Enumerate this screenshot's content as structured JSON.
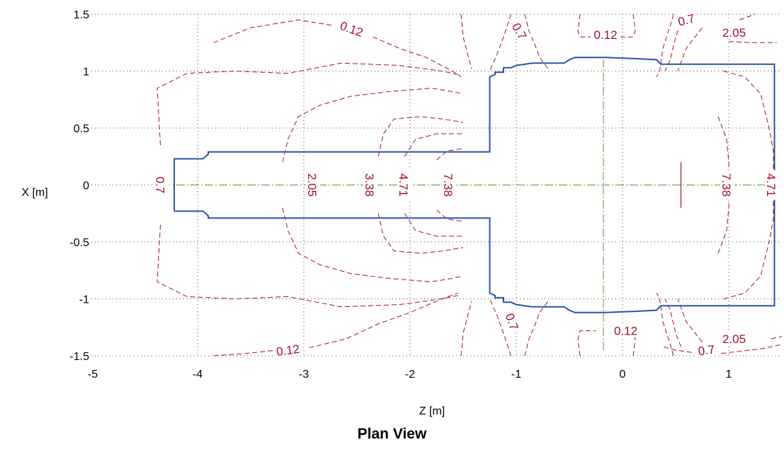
{
  "chart_data": {
    "type": "contour",
    "title": "Plan View",
    "xlabel": "Z [m]",
    "ylabel": "X [m]",
    "xlim": [
      -5,
      1.5
    ],
    "ylim": [
      -1.5,
      1.5
    ],
    "x_ticks": [
      "-5",
      "-4",
      "-3",
      "-2",
      "-1",
      "0",
      "1"
    ],
    "y_ticks": [
      "1.5",
      "1",
      "0.5",
      "0",
      "-0.5",
      "-1",
      "-1.5"
    ],
    "grid": true,
    "colors": {
      "contour": "#a1102a",
      "outline": "#2a55a5",
      "centerline": "#6aa84f",
      "grid": "#444444"
    },
    "contour_levels": [
      "0.12",
      "0.7",
      "2.05",
      "3.38",
      "4.71",
      "7.38"
    ],
    "contour_labels": [
      {
        "text": "0.12",
        "z": -2.55,
        "x": 1.37,
        "angle": 20
      },
      {
        "text": "0.7",
        "z": -0.97,
        "x": 1.35,
        "angle": 60
      },
      {
        "text": "0.12",
        "z": -0.16,
        "x": 1.32,
        "angle": 0
      },
      {
        "text": "0.7",
        "z": 0.6,
        "x": 1.45,
        "angle": -15
      },
      {
        "text": "2.05",
        "z": 1.05,
        "x": 1.34,
        "angle": 0
      },
      {
        "text": "0.7",
        "z": -4.35,
        "x": 0.0,
        "angle": 90
      },
      {
        "text": "2.05",
        "z": -2.92,
        "x": 0.0,
        "angle": 90
      },
      {
        "text": "3.38",
        "z": -2.38,
        "x": 0.0,
        "angle": 90
      },
      {
        "text": "4.71",
        "z": -2.06,
        "x": 0.0,
        "angle": 90
      },
      {
        "text": "7.38",
        "z": -1.64,
        "x": 0.0,
        "angle": 90
      },
      {
        "text": "7.38",
        "z": 0.98,
        "x": 0.0,
        "angle": 90
      },
      {
        "text": "4.71",
        "z": 1.4,
        "x": 0.0,
        "angle": 90
      },
      {
        "text": "0.7",
        "z": -1.04,
        "x": -1.2,
        "angle": 70
      },
      {
        "text": "0.12",
        "z": 0.03,
        "x": -1.28,
        "angle": 0
      },
      {
        "text": "2.05",
        "z": 1.05,
        "x": -1.35,
        "angle": 0
      },
      {
        "text": "0.7",
        "z": 0.79,
        "x": -1.45,
        "angle": -8
      },
      {
        "text": "0.12",
        "z": -3.15,
        "x": -1.45,
        "angle": -8
      }
    ],
    "contours": [
      [
        [
          -4.35,
          0.35
        ],
        [
          -4.38,
          0.85
        ],
        [
          -4.1,
          0.98
        ],
        [
          -3.65,
          1.0
        ],
        [
          -3.15,
          0.98
        ],
        [
          -2.65,
          1.07
        ],
        [
          -2.1,
          1.05
        ],
        [
          -1.7,
          1.0
        ],
        [
          -1.55,
          0.97
        ]
      ],
      [
        [
          -4.35,
          -0.35
        ],
        [
          -4.38,
          -0.85
        ],
        [
          -4.1,
          -0.98
        ],
        [
          -3.65,
          -1.0
        ],
        [
          -3.15,
          -0.98
        ],
        [
          -2.65,
          -1.07
        ],
        [
          -2.1,
          -1.05
        ],
        [
          -1.7,
          -1.0
        ],
        [
          -1.55,
          -0.97
        ]
      ],
      [
        [
          -3.2,
          -0.2
        ],
        [
          -3.15,
          -0.4
        ],
        [
          -3.05,
          -0.6
        ],
        [
          -2.85,
          -0.7
        ],
        [
          -2.55,
          -0.78
        ],
        [
          -2.2,
          -0.82
        ],
        [
          -1.8,
          -0.85
        ],
        [
          -1.6,
          -0.82
        ],
        [
          -1.5,
          -0.8
        ]
      ],
      [
        [
          -3.2,
          0.2
        ],
        [
          -3.15,
          0.4
        ],
        [
          -3.05,
          0.6
        ],
        [
          -2.85,
          0.7
        ],
        [
          -2.55,
          0.78
        ],
        [
          -2.2,
          0.82
        ],
        [
          -1.8,
          0.85
        ],
        [
          -1.6,
          0.82
        ],
        [
          -1.5,
          0.8
        ]
      ],
      [
        [
          -2.3,
          0.25
        ],
        [
          -2.25,
          0.45
        ],
        [
          -2.15,
          0.58
        ],
        [
          -1.9,
          0.6
        ],
        [
          -1.7,
          0.58
        ],
        [
          -1.5,
          0.55
        ]
      ],
      [
        [
          -2.3,
          -0.25
        ],
        [
          -2.25,
          -0.45
        ],
        [
          -2.15,
          -0.58
        ],
        [
          -1.9,
          -0.6
        ],
        [
          -1.7,
          -0.58
        ],
        [
          -1.5,
          -0.55
        ]
      ],
      [
        [
          -2.05,
          0.25
        ],
        [
          -1.95,
          0.4
        ],
        [
          -1.75,
          0.45
        ],
        [
          -1.5,
          0.45
        ]
      ],
      [
        [
          -2.05,
          -0.25
        ],
        [
          -1.95,
          -0.4
        ],
        [
          -1.75,
          -0.45
        ],
        [
          -1.5,
          -0.45
        ]
      ],
      [
        [
          -1.75,
          0.22
        ],
        [
          -1.65,
          0.3
        ],
        [
          -1.5,
          0.32
        ]
      ],
      [
        [
          -1.75,
          -0.22
        ],
        [
          -1.65,
          -0.3
        ],
        [
          -1.5,
          -0.32
        ]
      ],
      [
        [
          -3.85,
          1.25
        ],
        [
          -3.5,
          1.38
        ],
        [
          -3.05,
          1.45
        ],
        [
          -2.72,
          1.4
        ]
      ],
      [
        [
          -2.35,
          1.3
        ],
        [
          -2.1,
          1.2
        ],
        [
          -1.85,
          1.12
        ],
        [
          -1.6,
          1.0
        ],
        [
          -1.52,
          0.95
        ]
      ],
      [
        [
          -1.05,
          1.5
        ],
        [
          -1.12,
          1.3
        ],
        [
          -1.18,
          1.15
        ],
        [
          -1.25,
          1.0
        ]
      ],
      [
        [
          -0.92,
          1.5
        ],
        [
          -0.88,
          1.35
        ],
        [
          -0.82,
          1.22
        ],
        [
          -0.78,
          1.12
        ],
        [
          -0.7,
          1.02
        ]
      ],
      [
        [
          -1.52,
          1.5
        ],
        [
          -1.5,
          1.3
        ],
        [
          -1.45,
          1.12
        ],
        [
          -1.42,
          1.02
        ]
      ],
      [
        [
          -0.4,
          1.5
        ],
        [
          -0.42,
          1.35
        ],
        [
          -0.4,
          1.3
        ],
        [
          -0.3,
          1.3
        ]
      ],
      [
        [
          0.1,
          1.5
        ],
        [
          0.12,
          1.35
        ],
        [
          0.1,
          1.3
        ],
        [
          -0.02,
          1.3
        ]
      ],
      [
        [
          0.48,
          1.5
        ],
        [
          0.45,
          1.4
        ],
        [
          0.38,
          1.2
        ],
        [
          0.35,
          1.0
        ],
        [
          0.32,
          0.95
        ]
      ],
      [
        [
          0.55,
          1.42
        ],
        [
          0.5,
          1.3
        ],
        [
          0.45,
          1.1
        ],
        [
          0.4,
          1.0
        ]
      ],
      [
        [
          0.75,
          1.38
        ],
        [
          0.6,
          1.2
        ],
        [
          0.52,
          1.0
        ]
      ],
      [
        [
          1.1,
          1.45
        ],
        [
          1.25,
          1.5
        ]
      ],
      [
        [
          1.0,
          1.26
        ],
        [
          1.2,
          1.25
        ],
        [
          1.45,
          1.25
        ]
      ],
      [
        [
          0.95,
          1.0
        ],
        [
          1.15,
          0.95
        ],
        [
          1.3,
          0.8
        ],
        [
          1.38,
          0.5
        ],
        [
          1.42,
          0.3
        ],
        [
          1.42,
          0.1
        ]
      ],
      [
        [
          0.95,
          -1.0
        ],
        [
          1.15,
          -0.95
        ],
        [
          1.3,
          -0.8
        ],
        [
          1.38,
          -0.5
        ],
        [
          1.42,
          -0.3
        ],
        [
          1.42,
          -0.1
        ]
      ],
      [
        [
          0.9,
          0.6
        ],
        [
          0.98,
          0.4
        ],
        [
          1.0,
          0.2
        ],
        [
          1.0,
          0.05
        ]
      ],
      [
        [
          0.9,
          -0.6
        ],
        [
          0.98,
          -0.4
        ],
        [
          1.0,
          -0.2
        ],
        [
          1.0,
          -0.05
        ]
      ],
      [
        [
          -1.52,
          -1.5
        ],
        [
          -1.5,
          -1.3
        ],
        [
          -1.45,
          -1.12
        ],
        [
          -1.42,
          -1.02
        ]
      ],
      [
        [
          -1.05,
          -1.5
        ],
        [
          -1.12,
          -1.3
        ],
        [
          -1.18,
          -1.15
        ],
        [
          -1.25,
          -1.0
        ]
      ],
      [
        [
          -0.92,
          -1.5
        ],
        [
          -0.88,
          -1.35
        ],
        [
          -0.82,
          -1.22
        ],
        [
          -0.78,
          -1.12
        ],
        [
          -0.7,
          -1.02
        ]
      ],
      [
        [
          -0.4,
          -1.5
        ],
        [
          -0.42,
          -1.35
        ],
        [
          -0.4,
          -1.28
        ],
        [
          -0.25,
          -1.28
        ]
      ],
      [
        [
          0.1,
          -1.5
        ],
        [
          0.12,
          -1.35
        ],
        [
          0.1,
          -1.28
        ],
        [
          0.0,
          -1.28
        ]
      ],
      [
        [
          0.48,
          -1.5
        ],
        [
          0.45,
          -1.4
        ],
        [
          0.38,
          -1.2
        ],
        [
          0.35,
          -1.0
        ],
        [
          0.32,
          -0.95
        ]
      ],
      [
        [
          0.55,
          -1.42
        ],
        [
          0.5,
          -1.3
        ],
        [
          0.45,
          -1.1
        ],
        [
          0.4,
          -1.0
        ]
      ],
      [
        [
          0.75,
          -1.38
        ],
        [
          0.6,
          -1.2
        ],
        [
          0.52,
          -1.0
        ]
      ],
      [
        [
          0.93,
          -1.48
        ],
        [
          1.1,
          -1.46
        ],
        [
          1.3,
          -1.44
        ],
        [
          1.5,
          -1.4
        ]
      ],
      [
        [
          0.65,
          -1.47
        ],
        [
          0.5,
          -1.45
        ],
        [
          0.38,
          -1.42
        ]
      ],
      [
        [
          1.4,
          -1.35
        ],
        [
          1.5,
          -1.33
        ]
      ],
      [
        [
          -3.85,
          -1.5
        ],
        [
          -3.55,
          -1.48
        ],
        [
          -3.25,
          -1.45
        ]
      ],
      [
        [
          -2.95,
          -1.43
        ],
        [
          -2.6,
          -1.35
        ],
        [
          -2.3,
          -1.22
        ],
        [
          -2.0,
          -1.12
        ],
        [
          -1.7,
          -1.0
        ],
        [
          -1.55,
          -0.95
        ]
      ]
    ],
    "outline": [
      [
        -4.22,
        -0.23
      ],
      [
        -4.22,
        0.23
      ],
      [
        -3.95,
        0.23
      ],
      [
        -3.9,
        0.27
      ],
      [
        -3.9,
        0.29
      ],
      [
        -1.25,
        0.29
      ],
      [
        -1.25,
        0.95
      ],
      [
        -1.2,
        0.97
      ],
      [
        -1.2,
        0.99
      ],
      [
        -1.12,
        0.99
      ],
      [
        -1.12,
        1.03
      ],
      [
        -1.05,
        1.03
      ],
      [
        -1.0,
        1.05
      ],
      [
        -0.85,
        1.07
      ],
      [
        -0.55,
        1.07
      ],
      [
        -0.5,
        1.1
      ],
      [
        -0.45,
        1.12
      ],
      [
        -0.15,
        1.12
      ],
      [
        0.1,
        1.11
      ],
      [
        0.32,
        1.1
      ],
      [
        0.36,
        1.06
      ],
      [
        1.43,
        1.06
      ],
      [
        1.43,
        -1.06
      ],
      [
        0.36,
        -1.06
      ],
      [
        0.32,
        -1.1
      ],
      [
        0.1,
        -1.11
      ],
      [
        -0.15,
        -1.12
      ],
      [
        -0.45,
        -1.12
      ],
      [
        -0.5,
        -1.1
      ],
      [
        -0.55,
        -1.07
      ],
      [
        -0.85,
        -1.07
      ],
      [
        -1.0,
        -1.05
      ],
      [
        -1.05,
        -1.03
      ],
      [
        -1.12,
        -1.03
      ],
      [
        -1.12,
        -0.99
      ],
      [
        -1.2,
        -0.99
      ],
      [
        -1.2,
        -0.97
      ],
      [
        -1.25,
        -0.95
      ],
      [
        -1.25,
        -0.29
      ],
      [
        -3.9,
        -0.29
      ],
      [
        -3.9,
        -0.27
      ],
      [
        -3.95,
        -0.23
      ],
      [
        -4.22,
        -0.23
      ]
    ],
    "centerlines": [
      {
        "orientation": "horizontal",
        "x": 0,
        "z_from": -4.2,
        "z_to": 1.45
      },
      {
        "orientation": "vertical",
        "z": -0.18,
        "x_from": -1.45,
        "x_to": 1.1
      },
      {
        "orientation": "short_vertical",
        "z": 0.55,
        "x_from": -0.2,
        "x_to": 0.2
      }
    ]
  }
}
